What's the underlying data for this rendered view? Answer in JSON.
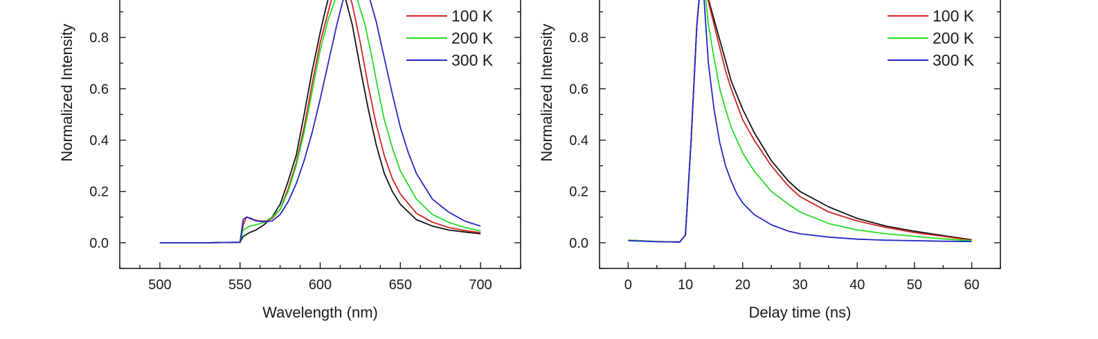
{
  "chart_data": [
    {
      "type": "line",
      "xlabel": "Wavelength (nm)",
      "ylabel": "Normalized Intensity",
      "xlim": [
        475,
        725
      ],
      "ylim": [
        -0.1,
        1.0
      ],
      "x_ticks": [
        "500",
        "550",
        "600",
        "650",
        "700"
      ],
      "y_ticks": [
        "0.0",
        "0.2",
        "0.4",
        "0.6",
        "0.8"
      ],
      "legend": {
        "placement": "top-right"
      },
      "series": [
        {
          "name": "",
          "color": "#111111",
          "points": [
            [
              500,
              0
            ],
            [
              530,
              0
            ],
            [
              550,
              0.002
            ],
            [
              552,
              0.025
            ],
            [
              556,
              0.04
            ],
            [
              560,
              0.05
            ],
            [
              565,
              0.07
            ],
            [
              570,
              0.1
            ],
            [
              575,
              0.15
            ],
            [
              580,
              0.24
            ],
            [
              585,
              0.34
            ],
            [
              590,
              0.5
            ],
            [
              595,
              0.67
            ],
            [
              600,
              0.82
            ],
            [
              603,
              0.9
            ],
            [
              605,
              0.95
            ],
            [
              608,
              1.0
            ],
            [
              612,
              1.0
            ],
            [
              615,
              0.97
            ],
            [
              620,
              0.85
            ],
            [
              625,
              0.68
            ],
            [
              630,
              0.52
            ],
            [
              635,
              0.38
            ],
            [
              640,
              0.27
            ],
            [
              645,
              0.2
            ],
            [
              650,
              0.15
            ],
            [
              660,
              0.09
            ],
            [
              670,
              0.065
            ],
            [
              680,
              0.05
            ],
            [
              690,
              0.042
            ],
            [
              700,
              0.035
            ]
          ]
        },
        {
          "name": "100 K",
          "color": "#d42020",
          "points": [
            [
              500,
              0
            ],
            [
              530,
              0
            ],
            [
              550,
              0.002
            ],
            [
              552,
              0.07
            ],
            [
              554,
              0.1
            ],
            [
              558,
              0.09
            ],
            [
              562,
              0.085
            ],
            [
              566,
              0.085
            ],
            [
              570,
              0.095
            ],
            [
              575,
              0.13
            ],
            [
              580,
              0.21
            ],
            [
              585,
              0.31
            ],
            [
              590,
              0.45
            ],
            [
              595,
              0.62
            ],
            [
              600,
              0.78
            ],
            [
              605,
              0.9
            ],
            [
              608,
              0.97
            ],
            [
              612,
              1.0
            ],
            [
              616,
              1.0
            ],
            [
              620,
              0.93
            ],
            [
              625,
              0.78
            ],
            [
              630,
              0.61
            ],
            [
              635,
              0.46
            ],
            [
              640,
              0.34
            ],
            [
              645,
              0.25
            ],
            [
              650,
              0.19
            ],
            [
              660,
              0.115
            ],
            [
              670,
              0.08
            ],
            [
              680,
              0.06
            ],
            [
              690,
              0.048
            ],
            [
              700,
              0.04
            ]
          ]
        },
        {
          "name": "200 K",
          "color": "#22dd22",
          "points": [
            [
              500,
              0
            ],
            [
              530,
              0
            ],
            [
              550,
              0.002
            ],
            [
              552,
              0.05
            ],
            [
              556,
              0.065
            ],
            [
              560,
              0.07
            ],
            [
              565,
              0.08
            ],
            [
              570,
              0.1
            ],
            [
              575,
              0.13
            ],
            [
              580,
              0.2
            ],
            [
              585,
              0.3
            ],
            [
              590,
              0.43
            ],
            [
              595,
              0.59
            ],
            [
              600,
              0.75
            ],
            [
              605,
              0.87
            ],
            [
              610,
              0.96
            ],
            [
              614,
              1.0
            ],
            [
              618,
              1.0
            ],
            [
              622,
              0.97
            ],
            [
              628,
              0.85
            ],
            [
              632,
              0.73
            ],
            [
              636,
              0.6
            ],
            [
              640,
              0.48
            ],
            [
              645,
              0.37
            ],
            [
              650,
              0.28
            ],
            [
              660,
              0.17
            ],
            [
              670,
              0.11
            ],
            [
              680,
              0.08
            ],
            [
              690,
              0.06
            ],
            [
              700,
              0.046
            ]
          ]
        },
        {
          "name": "300 K",
          "color": "#2424c8",
          "points": [
            [
              500,
              0
            ],
            [
              530,
              0
            ],
            [
              550,
              0.002
            ],
            [
              552,
              0.09
            ],
            [
              554,
              0.1
            ],
            [
              557,
              0.095
            ],
            [
              560,
              0.085
            ],
            [
              565,
              0.082
            ],
            [
              570,
              0.085
            ],
            [
              575,
              0.11
            ],
            [
              580,
              0.16
            ],
            [
              585,
              0.23
            ],
            [
              590,
              0.32
            ],
            [
              595,
              0.43
            ],
            [
              600,
              0.56
            ],
            [
              605,
              0.7
            ],
            [
              610,
              0.84
            ],
            [
              614,
              0.94
            ],
            [
              618,
              1.0
            ],
            [
              625,
              1.0
            ],
            [
              630,
              0.97
            ],
            [
              635,
              0.86
            ],
            [
              640,
              0.72
            ],
            [
              645,
              0.58
            ],
            [
              650,
              0.45
            ],
            [
              655,
              0.35
            ],
            [
              660,
              0.27
            ],
            [
              670,
              0.17
            ],
            [
              680,
              0.12
            ],
            [
              690,
              0.085
            ],
            [
              700,
              0.065
            ]
          ]
        }
      ]
    },
    {
      "type": "line",
      "xlabel": "Delay time (ns)",
      "ylabel": "Normalized Intensity",
      "xlim": [
        -5,
        65
      ],
      "ylim": [
        -0.1,
        1.0
      ],
      "x_ticks": [
        "0",
        "10",
        "20",
        "30",
        "40",
        "50",
        "60"
      ],
      "y_ticks": [
        "0.0",
        "0.2",
        "0.4",
        "0.6",
        "0.8"
      ],
      "legend": {
        "placement": "top-right"
      },
      "series": [
        {
          "name": "",
          "color": "#111111",
          "points": [
            [
              0,
              0.01
            ],
            [
              5,
              0.005
            ],
            [
              9,
              0.003
            ],
            [
              10,
              0.03
            ],
            [
              11,
              0.4
            ],
            [
              12,
              0.85
            ],
            [
              12.6,
              1.0
            ],
            [
              13.5,
              1.0
            ],
            [
              14,
              0.95
            ],
            [
              15,
              0.87
            ],
            [
              16,
              0.79
            ],
            [
              17,
              0.71
            ],
            [
              18,
              0.63
            ],
            [
              20,
              0.52
            ],
            [
              22,
              0.43
            ],
            [
              25,
              0.32
            ],
            [
              28,
              0.24
            ],
            [
              30,
              0.2
            ],
            [
              35,
              0.14
            ],
            [
              40,
              0.095
            ],
            [
              45,
              0.065
            ],
            [
              50,
              0.045
            ],
            [
              55,
              0.028
            ],
            [
              60,
              0.012
            ]
          ]
        },
        {
          "name": "100 K",
          "color": "#d42020",
          "points": [
            [
              0,
              0.01
            ],
            [
              5,
              0.005
            ],
            [
              9,
              0.003
            ],
            [
              10,
              0.03
            ],
            [
              11,
              0.4
            ],
            [
              12,
              0.85
            ],
            [
              12.6,
              1.0
            ],
            [
              13.5,
              1.0
            ],
            [
              14,
              0.94
            ],
            [
              15,
              0.85
            ],
            [
              16,
              0.76
            ],
            [
              17,
              0.67
            ],
            [
              18,
              0.6
            ],
            [
              20,
              0.48
            ],
            [
              22,
              0.4
            ],
            [
              25,
              0.3
            ],
            [
              28,
              0.22
            ],
            [
              30,
              0.18
            ],
            [
              35,
              0.12
            ],
            [
              40,
              0.085
            ],
            [
              45,
              0.06
            ],
            [
              50,
              0.04
            ],
            [
              55,
              0.025
            ],
            [
              60,
              0.01
            ]
          ]
        },
        {
          "name": "200 K",
          "color": "#22dd22",
          "points": [
            [
              0,
              0.01
            ],
            [
              5,
              0.005
            ],
            [
              9,
              0.003
            ],
            [
              10,
              0.03
            ],
            [
              11,
              0.4
            ],
            [
              12,
              0.85
            ],
            [
              12.6,
              1.0
            ],
            [
              13.3,
              1.0
            ],
            [
              14,
              0.85
            ],
            [
              15,
              0.72
            ],
            [
              16,
              0.6
            ],
            [
              17,
              0.52
            ],
            [
              18,
              0.45
            ],
            [
              20,
              0.35
            ],
            [
              22,
              0.28
            ],
            [
              25,
              0.2
            ],
            [
              28,
              0.15
            ],
            [
              30,
              0.12
            ],
            [
              35,
              0.075
            ],
            [
              40,
              0.05
            ],
            [
              45,
              0.035
            ],
            [
              50,
              0.025
            ],
            [
              55,
              0.015
            ],
            [
              60,
              0.008
            ]
          ]
        },
        {
          "name": "300 K",
          "color": "#2424c8",
          "points": [
            [
              0,
              0.008
            ],
            [
              5,
              0.004
            ],
            [
              9,
              0.003
            ],
            [
              10,
              0.03
            ],
            [
              11,
              0.4
            ],
            [
              12,
              0.85
            ],
            [
              12.6,
              1.0
            ],
            [
              13.1,
              1.0
            ],
            [
              14,
              0.7
            ],
            [
              15,
              0.52
            ],
            [
              16,
              0.39
            ],
            [
              17,
              0.3
            ],
            [
              18,
              0.24
            ],
            [
              19,
              0.19
            ],
            [
              20,
              0.155
            ],
            [
              22,
              0.11
            ],
            [
              25,
              0.07
            ],
            [
              28,
              0.045
            ],
            [
              30,
              0.035
            ],
            [
              35,
              0.022
            ],
            [
              40,
              0.014
            ],
            [
              45,
              0.01
            ],
            [
              50,
              0.008
            ],
            [
              55,
              0.006
            ],
            [
              60,
              0.005
            ]
          ]
        }
      ]
    }
  ]
}
